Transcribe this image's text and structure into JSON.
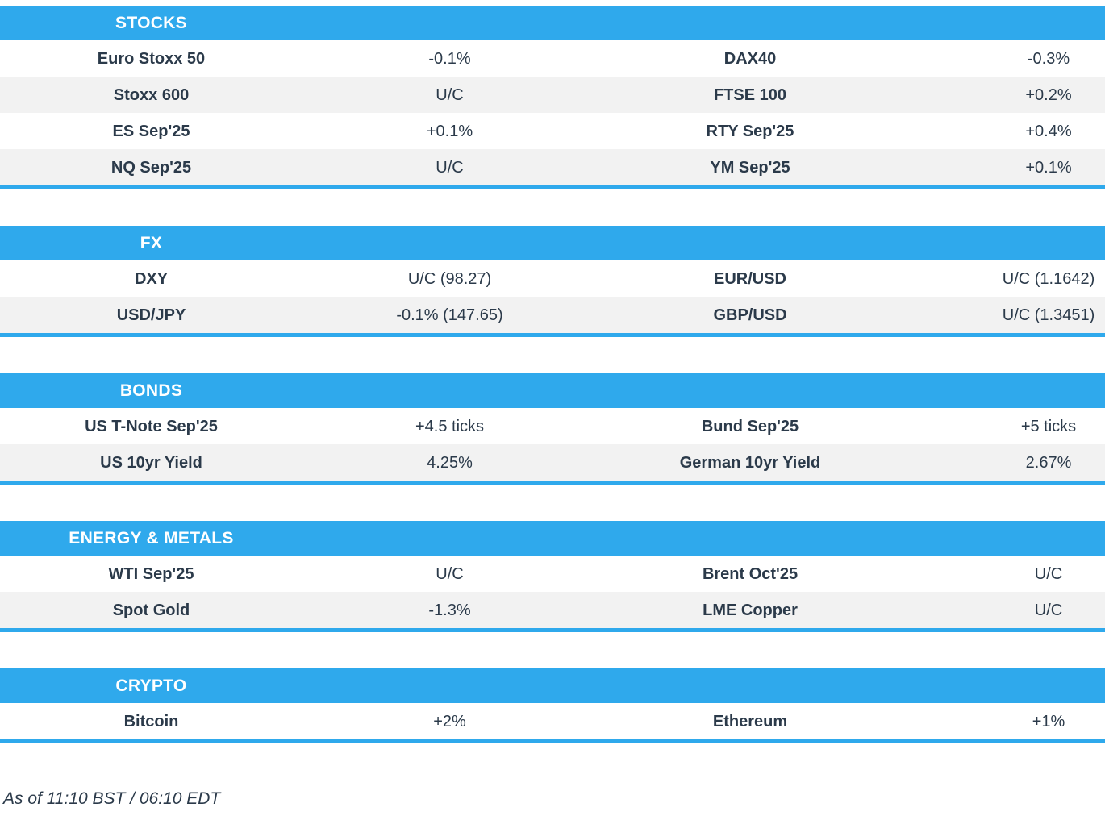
{
  "theme": {
    "accent_color": "#2FA9EC",
    "text_color": "#2B3A4A",
    "row_alt_color": "#F2F2F2",
    "header_text_color": "#FFFFFF"
  },
  "sections": [
    {
      "title": "STOCKS",
      "rows": [
        {
          "left_label": "Euro Stoxx 50",
          "left_value": "-0.1%",
          "right_label": "DAX40",
          "right_value": "-0.3%"
        },
        {
          "left_label": "Stoxx 600",
          "left_value": "U/C",
          "right_label": "FTSE 100",
          "right_value": "+0.2%"
        },
        {
          "left_label": "ES Sep'25",
          "left_value": "+0.1%",
          "right_label": "RTY Sep'25",
          "right_value": "+0.4%"
        },
        {
          "left_label": "NQ Sep'25",
          "left_value": "U/C",
          "right_label": "YM Sep'25",
          "right_value": "+0.1%"
        }
      ]
    },
    {
      "title": "FX",
      "rows": [
        {
          "left_label": "DXY",
          "left_value": "U/C (98.27)",
          "right_label": "EUR/USD",
          "right_value": "U/C (1.1642)"
        },
        {
          "left_label": "USD/JPY",
          "left_value": "-0.1% (147.65)",
          "right_label": "GBP/USD",
          "right_value": "U/C (1.3451)"
        }
      ]
    },
    {
      "title": "BONDS",
      "rows": [
        {
          "left_label": "US T-Note Sep'25",
          "left_value": "+4.5 ticks",
          "right_label": "Bund Sep'25",
          "right_value": "+5 ticks"
        },
        {
          "left_label": "US 10yr Yield",
          "left_value": "4.25%",
          "right_label": "German 10yr Yield",
          "right_value": "2.67%"
        }
      ]
    },
    {
      "title": "ENERGY & METALS",
      "rows": [
        {
          "left_label": "WTI Sep'25",
          "left_value": "U/C",
          "right_label": "Brent Oct'25",
          "right_value": "U/C"
        },
        {
          "left_label": "Spot Gold",
          "left_value": "-1.3%",
          "right_label": "LME Copper",
          "right_value": "U/C"
        }
      ]
    },
    {
      "title": "CRYPTO",
      "rows": [
        {
          "left_label": "Bitcoin",
          "left_value": "+2%",
          "right_label": "Ethereum",
          "right_value": "+1%"
        }
      ]
    }
  ],
  "footer": {
    "as_of": "As of 11:10 BST / 06:10 EDT"
  }
}
